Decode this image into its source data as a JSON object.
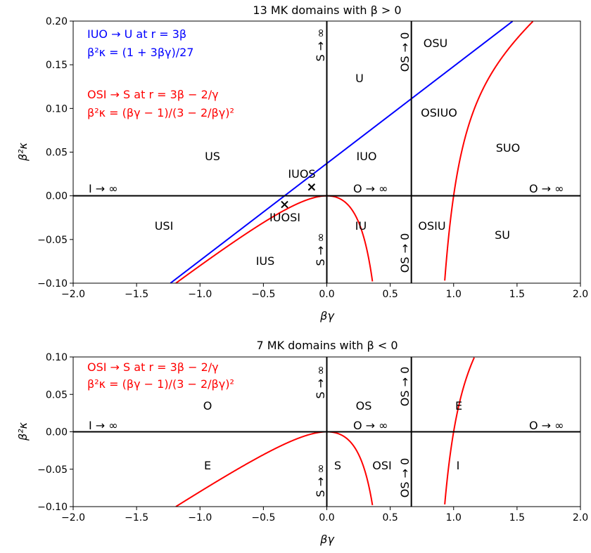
{
  "chart_data": [
    {
      "type": "line",
      "title": "13 MK domains with β > 0",
      "xlabel": "βγ",
      "ylabel": "β²κ",
      "xlim": [
        -2.0,
        2.0
      ],
      "ylim": [
        -0.1,
        0.2
      ],
      "x_ticks": [
        "−2.0",
        "−1.5",
        "−1.0",
        "−0.5",
        "0.0",
        "0.5",
        "1.0",
        "1.5",
        "2.0"
      ],
      "y_ticks": [
        "−0.10",
        "−0.05",
        "0.00",
        "0.05",
        "0.10",
        "0.15",
        "0.20"
      ],
      "grid": false,
      "annotations": {
        "blue_line1": "IUO → U at r = 3β",
        "blue_line2": "β²κ = (1 + 3βγ)/27",
        "red_line1": "OSI → S at r = 3β − 2/γ",
        "red_line2": "β²κ = (βγ − 1)/(3 − 2/βγ)²"
      },
      "edge_labels": {
        "i_inf": "I → ∞",
        "o_inf_mid": "O → ∞",
        "o_inf_right": "O → ∞",
        "s_inf_top": "S → ∞",
        "s_inf_bottom": "S → ∞",
        "os0_top": "OS → 0",
        "os0_bottom": "OS → 0"
      },
      "regions": {
        "U": "U",
        "OSU": "OSU",
        "OSIUO": "OSIUO",
        "SUO": "SUO",
        "US": "US",
        "IUOS": "IUOS",
        "IUO": "IUO",
        "USI": "USI",
        "IUOSI": "IUOSI",
        "IU": "IU",
        "OSIU": "OSIU",
        "SU": "SU",
        "IUS": "IUS"
      },
      "series": [
        {
          "formula": "(1 + 3x)/27",
          "color": "#0000ff"
        },
        {
          "formula": "(x − 1)/(3 − 2/x)^2",
          "color": "#ff0000"
        }
      ],
      "markers": [
        {
          "x": -0.333,
          "y": -0.01
        },
        {
          "x": -0.12,
          "y": 0.01
        }
      ],
      "vlines": [
        0.0,
        0.6667
      ],
      "hlines": [
        0.0
      ]
    },
    {
      "type": "line",
      "title": "7 MK domains with β < 0",
      "xlabel": "βγ",
      "ylabel": "β²κ",
      "xlim": [
        -2.0,
        2.0
      ],
      "ylim": [
        -0.1,
        0.1
      ],
      "x_ticks": [
        "−2.0",
        "−1.5",
        "−1.0",
        "−0.5",
        "0.0",
        "0.5",
        "1.0",
        "1.5",
        "2.0"
      ],
      "y_ticks": [
        "−0.10",
        "−0.05",
        "0.00",
        "0.05",
        "0.10"
      ],
      "grid": false,
      "annotations": {
        "red_line1": "OSI → S at r = 3β − 2/γ",
        "red_line2": "β²κ = (βγ − 1)/(3 − 2/βγ)²"
      },
      "edge_labels": {
        "i_inf": "I → ∞",
        "o_inf_mid": "O → ∞",
        "o_inf_right": "O → ∞",
        "s_inf_top": "S → ∞",
        "s_inf_bottom": "S → ∞",
        "os0_top": "OS → 0",
        "os0_bottom": "OS → 0"
      },
      "regions": {
        "O": "O",
        "OS": "OS",
        "E_top": "E",
        "E_bottom": "E",
        "S": "S",
        "OSI": "OSI",
        "I": "I"
      },
      "series": [
        {
          "formula": "(x − 1)/(3 − 2/x)^2",
          "color": "#ff0000"
        }
      ],
      "vlines": [
        0.0,
        0.6667
      ],
      "hlines": [
        0.0
      ]
    }
  ],
  "colors": {
    "blue": "#0000ff",
    "red": "#ff0000",
    "axis": "#000000"
  }
}
